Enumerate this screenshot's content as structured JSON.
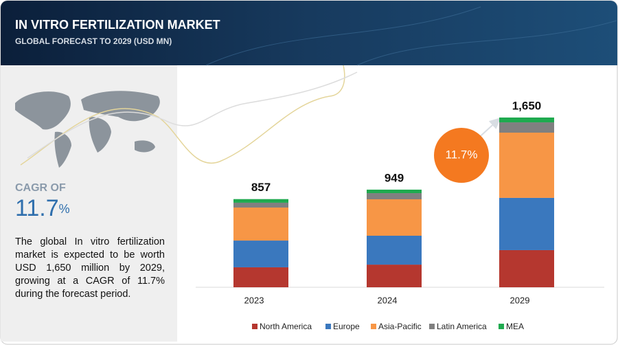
{
  "header": {
    "title": "IN VITRO FERTILIZATION MARKET",
    "subtitle": "GLOBAL FORECAST TO 2029 (USD MN)"
  },
  "sidebar": {
    "cagr_label": "CAGR OF",
    "cagr_value": "11.7",
    "cagr_unit": "%",
    "description": "The global In vitro fertilization market is expected to be worth USD 1,650 million by 2029, growing at a CAGR of 11.7% during the forecast period."
  },
  "chart_data": {
    "type": "stacked_bar",
    "categories": [
      "2023",
      "2024",
      "2029"
    ],
    "series": [
      {
        "name": "North America",
        "color": "#b5372f",
        "values": [
          194,
          220,
          361
        ]
      },
      {
        "name": "Europe",
        "color": "#3a78be",
        "values": [
          260,
          281,
          508
        ]
      },
      {
        "name": "Asia-Pacific",
        "color": "#f79646",
        "values": [
          321,
          354,
          634
        ]
      },
      {
        "name": "Latin America",
        "color": "#808080",
        "values": [
          47,
          60,
          100
        ]
      },
      {
        "name": "MEA",
        "color": "#1faa4f",
        "values": [
          35,
          34,
          47
        ]
      }
    ],
    "totals": [
      857,
      949,
      1650
    ],
    "total_labels": [
      "857",
      "949",
      "1,650"
    ],
    "annotation": "11.7%"
  }
}
